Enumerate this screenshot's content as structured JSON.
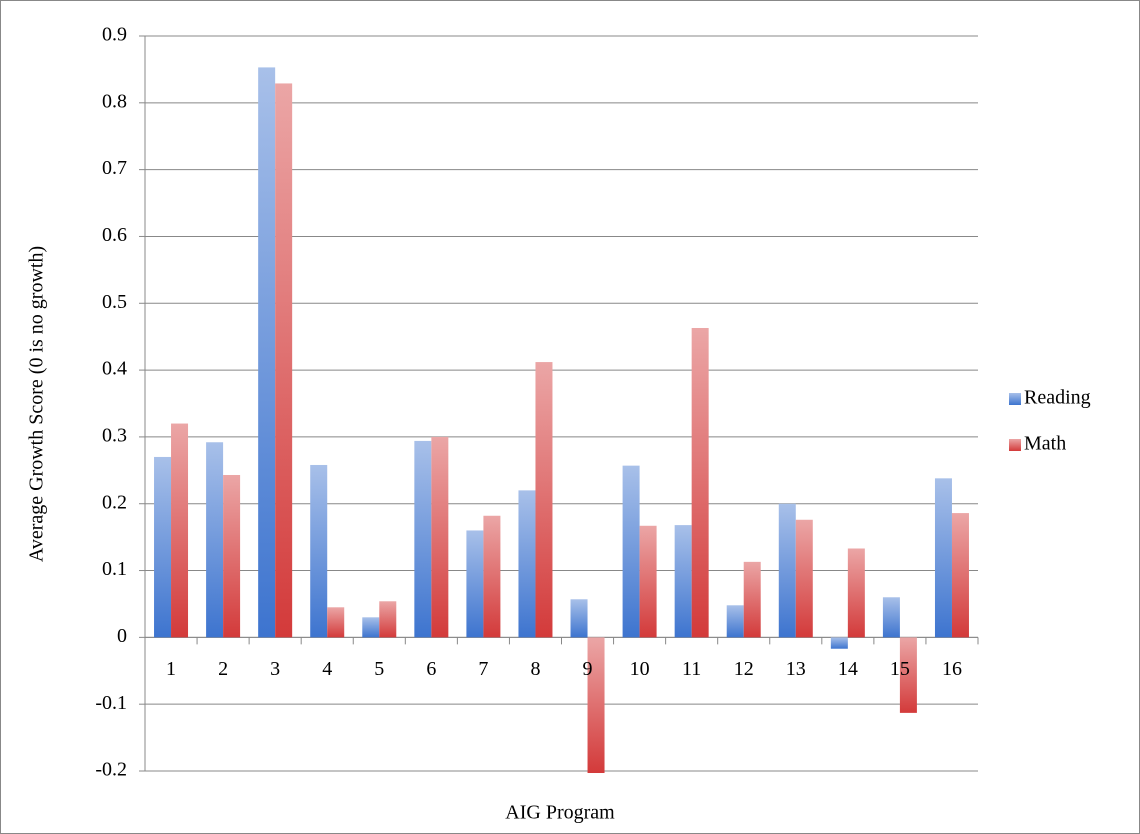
{
  "chart_data": {
    "type": "bar",
    "y_label": "Average Growth Score (0 is no growth)",
    "x_label": "AIG Program",
    "categories": [
      "1",
      "2",
      "3",
      "4",
      "5",
      "6",
      "7",
      "8",
      "9",
      "10",
      "11",
      "12",
      "13",
      "14",
      "15",
      "16"
    ],
    "series": [
      {
        "name": "Reading",
        "color": "#3d74cf",
        "values": [
          0.27,
          0.292,
          0.853,
          0.258,
          0.03,
          0.294,
          0.16,
          0.22,
          0.057,
          0.257,
          0.168,
          0.048,
          0.2,
          -0.017,
          0.06,
          0.238
        ]
      },
      {
        "name": "Math",
        "color": "#d33a3a",
        "values": [
          0.32,
          0.243,
          0.829,
          0.045,
          0.054,
          0.3,
          0.182,
          0.412,
          -0.203,
          0.167,
          0.463,
          0.113,
          0.176,
          0.133,
          -0.113,
          0.186
        ]
      }
    ],
    "ylim": [
      -0.2,
      0.9
    ],
    "yticks": [
      -0.2,
      -0.1,
      0,
      0.1,
      0.2,
      0.3,
      0.4,
      0.5,
      0.6,
      0.7,
      0.8,
      0.9
    ],
    "grid": true,
    "legend": "right"
  }
}
